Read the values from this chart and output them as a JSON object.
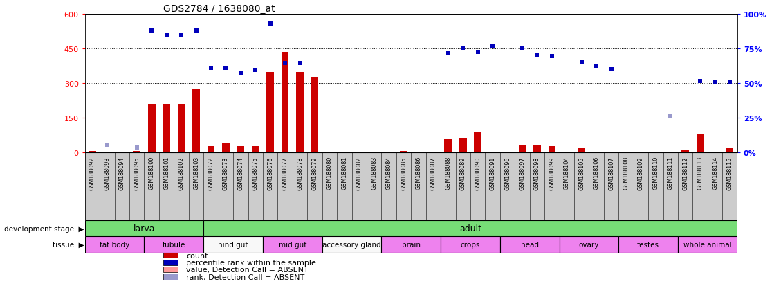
{
  "title": "GDS2784 / 1638080_at",
  "samples": [
    "GSM188092",
    "GSM188093",
    "GSM188094",
    "GSM188095",
    "GSM188100",
    "GSM188101",
    "GSM188102",
    "GSM188103",
    "GSM188072",
    "GSM188073",
    "GSM188074",
    "GSM188075",
    "GSM188076",
    "GSM188077",
    "GSM188078",
    "GSM188079",
    "GSM188080",
    "GSM188081",
    "GSM188082",
    "GSM188083",
    "GSM188084",
    "GSM188085",
    "GSM188086",
    "GSM188087",
    "GSM188088",
    "GSM188089",
    "GSM188090",
    "GSM188091",
    "GSM188096",
    "GSM188097",
    "GSM188098",
    "GSM188099",
    "GSM188104",
    "GSM188105",
    "GSM188106",
    "GSM188107",
    "GSM188108",
    "GSM188109",
    "GSM188110",
    "GSM188111",
    "GSM188112",
    "GSM188113",
    "GSM188114",
    "GSM188115"
  ],
  "count_values": [
    8,
    5,
    4,
    6,
    210,
    210,
    210,
    275,
    28,
    42,
    28,
    28,
    348,
    435,
    348,
    328,
    5,
    4,
    4,
    4,
    4,
    8,
    5,
    5,
    58,
    62,
    88,
    5,
    5,
    33,
    33,
    28,
    5,
    18,
    5,
    5,
    5,
    5,
    5,
    5,
    9,
    78,
    5,
    18
  ],
  "count_absent": [
    false,
    false,
    false,
    false,
    false,
    false,
    false,
    false,
    false,
    false,
    false,
    false,
    false,
    false,
    false,
    false,
    true,
    true,
    true,
    true,
    true,
    false,
    false,
    false,
    false,
    false,
    false,
    true,
    true,
    false,
    false,
    false,
    true,
    false,
    false,
    false,
    true,
    true,
    true,
    true,
    false,
    false,
    true,
    false
  ],
  "rank_values": [
    null,
    35,
    null,
    22,
    528,
    510,
    508,
    528,
    365,
    365,
    342,
    356,
    558,
    386,
    386,
    null,
    null,
    null,
    null,
    null,
    null,
    null,
    null,
    null,
    432,
    452,
    436,
    462,
    null,
    452,
    422,
    416,
    null,
    392,
    374,
    360,
    null,
    null,
    null,
    158,
    null,
    310,
    306,
    306
  ],
  "rank_absent": [
    false,
    true,
    false,
    true,
    false,
    false,
    false,
    false,
    false,
    false,
    false,
    false,
    false,
    false,
    false,
    false,
    false,
    false,
    false,
    false,
    false,
    false,
    false,
    false,
    false,
    false,
    false,
    false,
    false,
    false,
    false,
    false,
    false,
    false,
    false,
    false,
    false,
    false,
    false,
    true,
    false,
    false,
    false,
    false
  ],
  "dev_stage_groups": [
    {
      "label": "larva",
      "start": 0,
      "end": 8
    },
    {
      "label": "adult",
      "start": 8,
      "end": 44
    }
  ],
  "dev_color": "#77DD77",
  "tissue_groups": [
    {
      "label": "fat body",
      "start": 0,
      "end": 4,
      "pink": true
    },
    {
      "label": "tubule",
      "start": 4,
      "end": 8,
      "pink": true
    },
    {
      "label": "hind gut",
      "start": 8,
      "end": 12,
      "pink": false
    },
    {
      "label": "mid gut",
      "start": 12,
      "end": 16,
      "pink": true
    },
    {
      "label": "accessory gland",
      "start": 16,
      "end": 20,
      "pink": false
    },
    {
      "label": "brain",
      "start": 20,
      "end": 24,
      "pink": true
    },
    {
      "label": "crops",
      "start": 24,
      "end": 28,
      "pink": true
    },
    {
      "label": "head",
      "start": 28,
      "end": 32,
      "pink": true
    },
    {
      "label": "ovary",
      "start": 32,
      "end": 36,
      "pink": true
    },
    {
      "label": "testes",
      "start": 36,
      "end": 40,
      "pink": true
    },
    {
      "label": "whole animal",
      "start": 40,
      "end": 44,
      "pink": true
    }
  ],
  "tissue_pink": "#EE82EE",
  "tissue_white": "#F8F8F8",
  "ylim_left": [
    0,
    600
  ],
  "ylim_right": [
    0,
    100
  ],
  "yticks_left": [
    0,
    150,
    300,
    450,
    600
  ],
  "yticks_right": [
    0,
    25,
    50,
    75,
    100
  ],
  "grid_lines": [
    150,
    300,
    450
  ],
  "bar_color": "#CC0000",
  "bar_absent_color": "#FF9999",
  "dot_color": "#0000BB",
  "dot_absent_color": "#9999CC",
  "sample_box_color": "#CCCCCC",
  "legend_items": [
    {
      "color": "#CC0000",
      "label": "count"
    },
    {
      "color": "#0000BB",
      "label": "percentile rank within the sample"
    },
    {
      "color": "#FF9999",
      "label": "value, Detection Call = ABSENT"
    },
    {
      "color": "#9999CC",
      "label": "rank, Detection Call = ABSENT"
    }
  ]
}
